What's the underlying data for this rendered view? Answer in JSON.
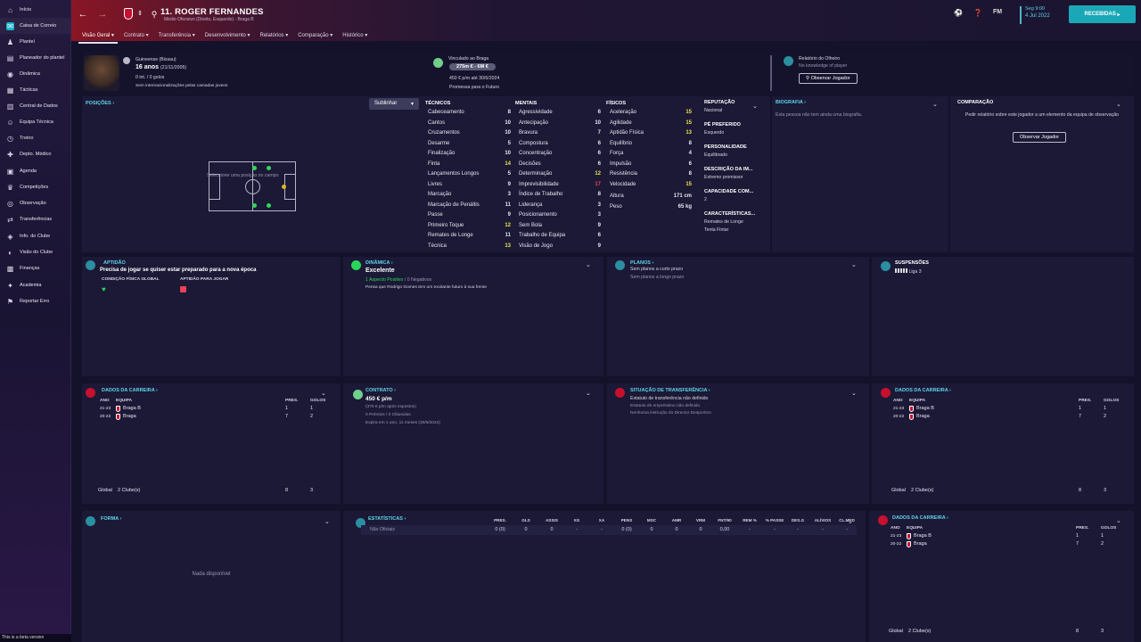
{
  "sidebar": {
    "items": [
      {
        "label": "Início",
        "icon": "home-icon"
      },
      {
        "label": "Caixa de Correio",
        "icon": "inbox-icon"
      },
      {
        "label": "Plantel",
        "icon": "squad-icon"
      },
      {
        "label": "Planeador do plantel",
        "icon": "planner-icon"
      },
      {
        "label": "Dinâmica",
        "icon": "dynamics-icon"
      },
      {
        "label": "Tácticas",
        "icon": "tactics-icon"
      },
      {
        "label": "Central de Dados",
        "icon": "data-icon"
      },
      {
        "label": "Equipa Técnica",
        "icon": "staff-icon"
      },
      {
        "label": "Treino",
        "icon": "training-icon"
      },
      {
        "label": "Depto. Médico",
        "icon": "medical-icon"
      },
      {
        "label": "Agenda",
        "icon": "calendar-icon"
      },
      {
        "label": "Competições",
        "icon": "trophy-icon"
      },
      {
        "label": "Observação",
        "icon": "scouting-icon"
      },
      {
        "label": "Transferências",
        "icon": "transfers-icon"
      },
      {
        "label": "Info. do Clube",
        "icon": "club-icon"
      },
      {
        "label": "Visão do Clube",
        "icon": "vision-icon"
      },
      {
        "label": "Finanças",
        "icon": "finance-icon"
      },
      {
        "label": "Academia",
        "icon": "academy-icon"
      },
      {
        "label": "Reportar Erro",
        "icon": "bug-icon"
      }
    ],
    "beta": "This is a beta version"
  },
  "header": {
    "title": "11. ROGER FERNANDES",
    "subtitle": "Médio Ofensivo (Direito, Esquerdo) - Braga B",
    "tabs": [
      "Visão Geral",
      "Contrato",
      "Transferência",
      "Desenvolvimento",
      "Relatórios",
      "Comparação",
      "Histórico"
    ],
    "date_line1": "Seg 9:00",
    "date_line2": "4 Jul 2022",
    "fm": "FM",
    "received": "RECEBIDAS"
  },
  "profile": {
    "nationality": "Guineense (Bissau)",
    "age": "16 anos",
    "dob": "(21/11/2005)",
    "caps": "0 int. / 0 golos",
    "youth": "Sem internacionalizações pelas camadas jovens",
    "contract_label": "Vinculado ao Braga",
    "value": "275m € - 6M €",
    "wage": "450 € p/m até 30/6/2024",
    "status": "Promessa para o Futuro",
    "scout_label": "Relatório do Olheiro",
    "scout_value": "No knowledge of player",
    "scout_button": "Observar Jogador"
  },
  "positions": {
    "title": "POSIÇÕES",
    "highlight": "Sublinhar",
    "hint": "Seleccione uma posição no campo"
  },
  "attributes": {
    "tech_title": "TÉCNICOS",
    "mental_title": "MENTAIS",
    "phys_title": "FÍSICOS",
    "technical": [
      {
        "n": "Cabeceamento",
        "v": "8",
        "c": ""
      },
      {
        "n": "Cantos",
        "v": "10",
        "c": ""
      },
      {
        "n": "Cruzamentos",
        "v": "10",
        "c": ""
      },
      {
        "n": "Desarme",
        "v": "5",
        "c": ""
      },
      {
        "n": "Finalização",
        "v": "10",
        "c": ""
      },
      {
        "n": "Finta",
        "v": "14",
        "c": "y"
      },
      {
        "n": "Lançamentos Longos",
        "v": "5",
        "c": ""
      },
      {
        "n": "Livres",
        "v": "9",
        "c": ""
      },
      {
        "n": "Marcação",
        "v": "3",
        "c": ""
      },
      {
        "n": "Marcação de Penáltis",
        "v": "11",
        "c": ""
      },
      {
        "n": "Passe",
        "v": "9",
        "c": ""
      },
      {
        "n": "Primeiro Toque",
        "v": "12",
        "c": "y"
      },
      {
        "n": "Remates de Longe",
        "v": "11",
        "c": ""
      },
      {
        "n": "Técnica",
        "v": "13",
        "c": "y"
      }
    ],
    "mental": [
      {
        "n": "Agressividade",
        "v": "6",
        "c": ""
      },
      {
        "n": "Antecipação",
        "v": "10",
        "c": ""
      },
      {
        "n": "Bravura",
        "v": "7",
        "c": ""
      },
      {
        "n": "Compostura",
        "v": "6",
        "c": ""
      },
      {
        "n": "Concentração",
        "v": "6",
        "c": ""
      },
      {
        "n": "Decisões",
        "v": "6",
        "c": ""
      },
      {
        "n": "Determinação",
        "v": "12",
        "c": "y"
      },
      {
        "n": "Imprevisibilidade",
        "v": "17",
        "c": "r"
      },
      {
        "n": "Índice de Trabalho",
        "v": "8",
        "c": ""
      },
      {
        "n": "Liderança",
        "v": "3",
        "c": ""
      },
      {
        "n": "Posicionamento",
        "v": "3",
        "c": ""
      },
      {
        "n": "Sem Bola",
        "v": "9",
        "c": ""
      },
      {
        "n": "Trabalho de Equipa",
        "v": "6",
        "c": ""
      },
      {
        "n": "Visão de Jogo",
        "v": "9",
        "c": ""
      }
    ],
    "physical": [
      {
        "n": "Aceleração",
        "v": "15",
        "c": "y"
      },
      {
        "n": "Agilidade",
        "v": "15",
        "c": "y"
      },
      {
        "n": "Aptidão Física",
        "v": "13",
        "c": "y"
      },
      {
        "n": "Equilíbrio",
        "v": "8",
        "c": ""
      },
      {
        "n": "Força",
        "v": "4",
        "c": ""
      },
      {
        "n": "Impulsão",
        "v": "6",
        "c": ""
      },
      {
        "n": "Resistência",
        "v": "8",
        "c": ""
      },
      {
        "n": "Velocidade",
        "v": "15",
        "c": "y"
      }
    ],
    "height_label": "Altura",
    "height": "171 cm",
    "weight_label": "Peso",
    "weight": "65 kg"
  },
  "info": {
    "rep_title": "REPUTAÇÃO",
    "rep": "Nacional",
    "foot_title": "PÉ PREFERIDO",
    "foot": "Esquerdo",
    "pers_title": "PERSONALIDADE",
    "pers": "Equilibrado",
    "desc_title": "DESCRIÇÃO DA IM...",
    "desc": "Extremo promissor",
    "cap_title": "CAPACIDADE COM...",
    "cap": "2",
    "char_title": "CARACTERÍSTICAS...",
    "char1": "Remates de Longe",
    "char2": "Tenta Fintar"
  },
  "bio": {
    "title": "BIOGRAFIA",
    "text": "Esta pessoa não tem ainda uma biografia."
  },
  "compare": {
    "title": "COMPARAÇÃO",
    "text": "Pedir relatório sobre este jogador a um elemento da equipa de observação",
    "button": "Observar Jogador"
  },
  "fitness": {
    "title": "APTIDÃO",
    "headline": "Precisa de jogar se quiser estar preparado para a nova época",
    "label1": "CONDIÇÃO FÍSICA GLOBAL",
    "label2": "APTIDÃO PARA JOGAR"
  },
  "dynamics": {
    "title": "DINÂMICA",
    "headline": "Excelente",
    "positive": "1 Aspecto Positivo",
    "negative": "0 Negativos",
    "sep": "/",
    "note": "Pensa que Rodrigo Gomes tem um excitante futuro à sua frente"
  },
  "plans": {
    "title": "PLANOS",
    "short": "Sem planos a curto prazo",
    "long": "Sem planos a longo prazo"
  },
  "suspensions": {
    "title": "SUSPENSÕES",
    "league": "Liga 3"
  },
  "career": {
    "title": "DADOS DA CARREIRA",
    "cols": [
      "ANO",
      "EQUIPA",
      "PRES.",
      "GOLOS"
    ],
    "rows": [
      {
        "year": "21-23",
        "team": "Braga B",
        "apps": "1",
        "goals": "1"
      },
      {
        "year": "20-22",
        "team": "Braga",
        "apps": "7",
        "goals": "2"
      }
    ],
    "total_label": "Global",
    "total_clubs": "2 Clube(s)",
    "total_apps": "8",
    "total_goals": "3",
    "total_apps_b": "8",
    "total_goals_b": "3"
  },
  "contract": {
    "title": "CONTRATO",
    "wage": "450 € p/m",
    "tax": "(375 € p/m após impostos)",
    "bonus": "0 Prémios / 0 Cláusulas",
    "expiry": "Expira em 1 ano, 11 meses (30/6/2024)"
  },
  "transfer": {
    "title": "SITUAÇÃO DE TRANSFERÊNCIA",
    "line1": "Estatuto de transferência não definido",
    "line2": "Estatuto de empréstimo não definido",
    "line3": "Nenhuma instrução do Director Desportivo"
  },
  "form": {
    "title": "FORMA",
    "empty": "Nada disponível"
  },
  "stats": {
    "title": "ESTATÍSTICAS",
    "cols": [
      "PRES.",
      "GLS",
      "ASSIS",
      "XG",
      "XA",
      "PENS",
      "MSC",
      "AMR",
      "VRM",
      "FNT/90",
      "REM %",
      "% PASSE",
      "DES.G",
      "ALÍVIOS",
      "CL.MED"
    ],
    "row_label": "Não Oficiais",
    "row": [
      "0 (0)",
      "0",
      "0",
      "-",
      "-",
      "0 (0)",
      "0",
      "0",
      "0",
      "0,00",
      "-",
      "-",
      "-",
      "-",
      "-"
    ]
  },
  "colors": {
    "accent": "#5fd5ea",
    "yellow": "#e9e24a",
    "red": "#ec4254",
    "green": "#29d65a"
  }
}
